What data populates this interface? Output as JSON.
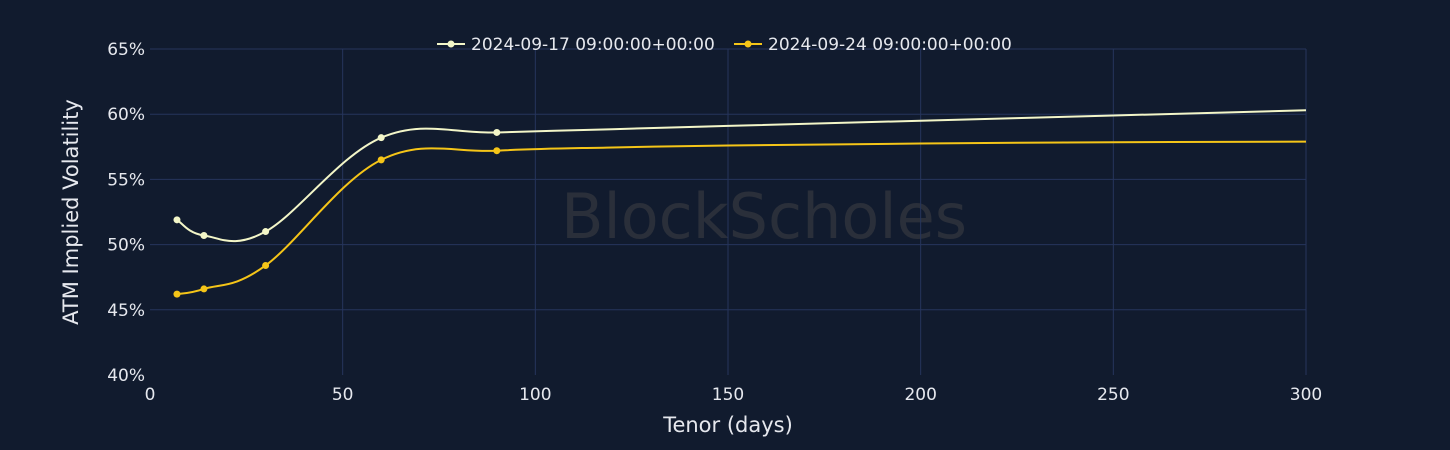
{
  "colors": {
    "background": "#111b2e",
    "grid": "#26355c",
    "text": "#e6e8ee",
    "series_1": "#f3f6c8",
    "series_2": "#f5c518"
  },
  "watermark": "BlockScholes",
  "chart_data": {
    "type": "line",
    "xlabel": "Tenor (days)",
    "ylabel": "ATM Implied Volatility",
    "xlim": [
      0,
      300
    ],
    "ylim": [
      40,
      65
    ],
    "x_ticks": [
      "0",
      "50",
      "100",
      "150",
      "200",
      "250",
      "300"
    ],
    "y_ticks": [
      "40%",
      "45%",
      "50%",
      "55%",
      "60%",
      "65%"
    ],
    "grid": true,
    "legend_position": "top-center",
    "series": [
      {
        "name": "2024-09-17 09:00:00+00:00",
        "color": "#f3f6c8",
        "x": [
          7,
          14,
          30,
          60,
          90
        ],
        "y": [
          51.9,
          50.7,
          51.0,
          58.2,
          58.6
        ],
        "extended": {
          "x": [
            120,
            150,
            200,
            250,
            300
          ],
          "y": [
            58.85,
            59.1,
            59.5,
            59.9,
            60.3
          ]
        }
      },
      {
        "name": "2024-09-24 09:00:00+00:00",
        "color": "#f5c518",
        "x": [
          7,
          14,
          30,
          60,
          90
        ],
        "y": [
          46.2,
          46.6,
          48.4,
          56.5,
          57.2
        ],
        "extended": {
          "x": [
            120,
            150,
            200,
            250,
            300
          ],
          "y": [
            57.45,
            57.6,
            57.75,
            57.85,
            57.9
          ]
        }
      }
    ]
  }
}
